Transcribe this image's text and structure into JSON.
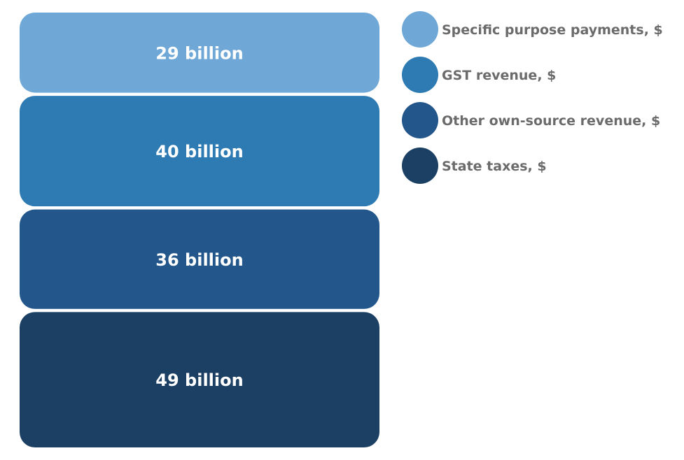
{
  "chart_data": {
    "type": "stacked-blocks",
    "unit": "billion",
    "categories": [
      "Specific purpose payments, $",
      "GST revenue, $",
      "Other own-source revenue, $",
      "State taxes, $"
    ],
    "values": [
      29,
      40,
      36,
      49
    ],
    "labels": [
      "29 billion",
      "40 billion",
      "36 billion",
      "49 billion"
    ],
    "colors": [
      "#6fa8d6",
      "#2e7bb4",
      "#23578c",
      "#1c4064"
    ],
    "legend_position": "right"
  }
}
